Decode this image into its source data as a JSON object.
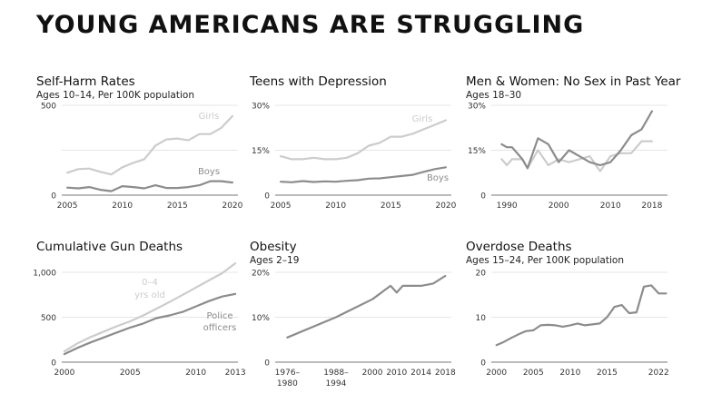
{
  "page": {
    "title": "YOUNG AMERICANS ARE STRUGGLING"
  },
  "colors": {
    "light": "#cccccc",
    "dark": "#8c8c8c",
    "axis": "#777777",
    "grid": "#dddddd",
    "tick": "#333333"
  },
  "chart_data": [
    {
      "type": "line",
      "title": "Self-Harm Rates",
      "subtitle": "Ages 10–14, Per 100K population",
      "ylim": [
        0,
        500
      ],
      "yticks": [
        0,
        250,
        500
      ],
      "ytick_labels": [
        "0",
        "",
        "500"
      ],
      "xlim": [
        2004.5,
        2020.5
      ],
      "xticks": [
        2005,
        2010,
        2015,
        2020
      ],
      "xtick_labels": [
        "2005",
        "2010",
        "2015",
        "2020"
      ],
      "series": [
        {
          "name": "Girls",
          "tone": "light",
          "x": [
            2005,
            2006,
            2007,
            2008,
            2009,
            2010,
            2011,
            2012,
            2013,
            2014,
            2015,
            2016,
            2017,
            2018,
            2019,
            2020
          ],
          "values": [
            125,
            145,
            148,
            130,
            115,
            155,
            180,
            200,
            275,
            310,
            315,
            305,
            340,
            340,
            375,
            440
          ]
        },
        {
          "name": "Boys",
          "tone": "dark",
          "x": [
            2005,
            2006,
            2007,
            2008,
            2009,
            2010,
            2011,
            2012,
            2013,
            2014,
            2015,
            2016,
            2017,
            2018,
            2019,
            2020
          ],
          "values": [
            42,
            38,
            45,
            30,
            22,
            50,
            45,
            38,
            55,
            40,
            40,
            45,
            55,
            78,
            78,
            70
          ]
        }
      ]
    },
    {
      "type": "line",
      "title": "Teens with Depression",
      "subtitle": "",
      "ylim": [
        0,
        30
      ],
      "yticks": [
        0,
        15,
        30
      ],
      "ytick_labels": [
        "0",
        "15%",
        "30%"
      ],
      "xlim": [
        2004.5,
        2020.5
      ],
      "xticks": [
        2005,
        2010,
        2015,
        2020
      ],
      "xtick_labels": [
        "2005",
        "2010",
        "2015",
        "2020"
      ],
      "series": [
        {
          "name": "Girls",
          "tone": "light",
          "x": [
            2005,
            2006,
            2007,
            2008,
            2009,
            2010,
            2011,
            2012,
            2013,
            2014,
            2015,
            2016,
            2017,
            2018,
            2019,
            2020
          ],
          "values": [
            13,
            12,
            12,
            12.5,
            12,
            12,
            12.5,
            14,
            16.5,
            17.5,
            19.5,
            19.5,
            20.5,
            22,
            23.5,
            25
          ]
        },
        {
          "name": "Boys",
          "tone": "dark",
          "x": [
            2005,
            2006,
            2007,
            2008,
            2009,
            2010,
            2011,
            2012,
            2013,
            2014,
            2015,
            2016,
            2017,
            2018,
            2019,
            2020
          ],
          "values": [
            4.5,
            4.3,
            4.7,
            4.4,
            4.6,
            4.5,
            4.8,
            5,
            5.5,
            5.6,
            6,
            6.4,
            6.8,
            7.8,
            8.7,
            9.3
          ]
        }
      ]
    },
    {
      "type": "line",
      "title": "Men & Women: No Sex in Past Year",
      "subtitle": "Ages 18–30",
      "ylim": [
        0,
        30
      ],
      "yticks": [
        0,
        15,
        30
      ],
      "ytick_labels": [
        "0",
        "15%",
        "30%"
      ],
      "xlim": [
        1987,
        2021
      ],
      "xticks": [
        1990,
        2000,
        2010,
        2018
      ],
      "xtick_labels": [
        "1990",
        "2000",
        "2010",
        "2018"
      ],
      "series": [
        {
          "name": "Women",
          "tone": "light",
          "x": [
            1989,
            1990,
            1991,
            1993,
            1994,
            1996,
            1998,
            2000,
            2002,
            2004,
            2006,
            2008,
            2010,
            2012,
            2014,
            2016,
            2018
          ],
          "values": [
            12,
            10,
            12,
            12,
            9,
            15,
            10,
            12,
            11,
            12,
            13,
            8,
            13,
            14,
            14,
            18,
            18
          ]
        },
        {
          "name": "Men",
          "tone": "dark",
          "x": [
            1989,
            1990,
            1991,
            1993,
            1994,
            1996,
            1998,
            2000,
            2002,
            2004,
            2006,
            2008,
            2010,
            2012,
            2014,
            2016,
            2018
          ],
          "values": [
            17,
            16,
            16,
            12,
            9,
            19,
            17,
            11,
            15,
            13,
            11,
            10,
            11,
            15,
            20,
            22,
            28
          ]
        }
      ]
    },
    {
      "type": "line",
      "title": "Cumulative Gun Deaths",
      "subtitle": "",
      "ylim": [
        0,
        1000
      ],
      "yticks": [
        0,
        500,
        1000
      ],
      "ytick_labels": [
        "0",
        "500",
        "1,000"
      ],
      "xlim": [
        1999.8,
        2013.2
      ],
      "xticks": [
        2000,
        2005,
        2010,
        2013
      ],
      "xtick_labels": [
        "2000",
        "2005",
        "2010",
        "2013"
      ],
      "annotations": [
        {
          "text": "0–4",
          "series": 0
        },
        {
          "text": "yrs old",
          "series": 0
        },
        {
          "text": "Police",
          "series": 1
        },
        {
          "text": "officers",
          "series": 1
        }
      ],
      "series": [
        {
          "name": "0–4 yrs old",
          "tone": "light",
          "x": [
            2000,
            2001,
            2002,
            2003,
            2004,
            2005,
            2006,
            2007,
            2008,
            2009,
            2010,
            2011,
            2012,
            2013
          ],
          "values": [
            120,
            210,
            280,
            340,
            400,
            455,
            520,
            595,
            670,
            750,
            830,
            910,
            990,
            1100
          ]
        },
        {
          "name": "Police officers",
          "tone": "dark",
          "x": [
            2000,
            2001,
            2002,
            2003,
            2004,
            2005,
            2006,
            2007,
            2008,
            2009,
            2010,
            2011,
            2012,
            2013
          ],
          "values": [
            90,
            160,
            220,
            275,
            330,
            385,
            430,
            490,
            520,
            560,
            620,
            680,
            730,
            760
          ]
        }
      ]
    },
    {
      "type": "line",
      "title": "Obesity",
      "subtitle": "Ages 2–19",
      "ylim": [
        0,
        20
      ],
      "yticks": [
        0,
        10,
        20
      ],
      "ytick_labels": [
        "0",
        "10%",
        "20%"
      ],
      "xlim": [
        0,
        14.5
      ],
      "xticks": [
        1,
        5,
        8,
        10,
        12,
        14
      ],
      "xtick_labels": [
        [
          "1976–",
          "1980"
        ],
        [
          "1988–",
          "1994"
        ],
        [
          "2000"
        ],
        [
          "2010"
        ],
        [
          "2014"
        ],
        [
          "2018"
        ]
      ],
      "series": [
        {
          "name": "Obesity",
          "tone": "dark",
          "x": [
            1,
            5,
            8,
            8.5,
            9,
            9.5,
            10,
            10.5,
            11,
            11.5,
            12,
            13,
            14
          ],
          "values": [
            5.5,
            10,
            14,
            15,
            16,
            17,
            15.5,
            17,
            17,
            17,
            17,
            17.5,
            19.2
          ]
        }
      ]
    },
    {
      "type": "line",
      "title": "Overdose Deaths",
      "subtitle": "Ages 15–24, Per 100K population",
      "ylim": [
        0,
        20
      ],
      "yticks": [
        0,
        10,
        20
      ],
      "ytick_labels": [
        "0",
        "10",
        "20"
      ],
      "xlim": [
        1999.3,
        2023.2
      ],
      "xticks": [
        2000,
        2005,
        2010,
        2015,
        2022
      ],
      "xtick_labels": [
        "2000",
        "2005",
        "2010",
        "2015",
        "2022"
      ],
      "series": [
        {
          "name": "Overdose",
          "tone": "dark",
          "x": [
            2000,
            2001,
            2002,
            2003,
            2004,
            2005,
            2006,
            2007,
            2008,
            2009,
            2010,
            2011,
            2012,
            2013,
            2014,
            2015,
            2016,
            2017,
            2018,
            2019,
            2020,
            2021,
            2022,
            2023
          ],
          "values": [
            3.8,
            4.5,
            5.4,
            6.2,
            6.9,
            7.1,
            8.2,
            8.3,
            8.2,
            7.9,
            8.2,
            8.6,
            8.2,
            8.4,
            8.6,
            10,
            12.3,
            12.7,
            10.9,
            11.1,
            16.8,
            17.1,
            15.3,
            15.3
          ]
        }
      ]
    }
  ]
}
